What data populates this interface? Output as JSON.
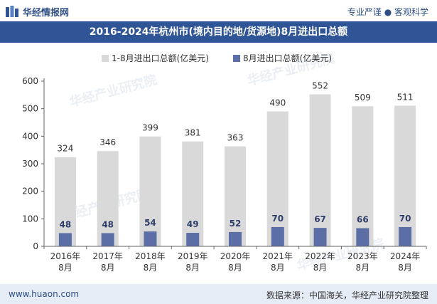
{
  "header": {
    "brand": "华经情报网",
    "tagline": "专业严谨 ● 客观科学"
  },
  "title": "2016-2024年杭州市(境内目的地/货源地)8月进出口总额",
  "footer": {
    "website": "www.huaon.com",
    "source": "数据来源：中国海关，华经产业研究院整理"
  },
  "colors": {
    "header_band": "#2f5597",
    "series1": "#d9d9d9",
    "series2": "#5b6fa6"
  },
  "chart_data": {
    "type": "bar",
    "categories": [
      "2016年\n8月",
      "2017年\n8月",
      "2018年\n8月",
      "2019年\n8月",
      "2020年\n8月",
      "2021年\n8月",
      "2022年\n8月",
      "2023年\n8月",
      "2024年\n8月"
    ],
    "series": [
      {
        "name": "1-8月进出口总额(亿美元)",
        "values": [
          324,
          346,
          399,
          381,
          363,
          490,
          552,
          509,
          511
        ]
      },
      {
        "name": "8月进出口总额(亿美元)",
        "values": [
          48,
          48,
          54,
          49,
          52,
          70,
          67,
          66,
          70
        ]
      }
    ],
    "ylim": [
      0,
      600
    ],
    "yticks": [
      0,
      100,
      200,
      300,
      400,
      500,
      600
    ],
    "legend_position": "top-center",
    "grid": false
  }
}
